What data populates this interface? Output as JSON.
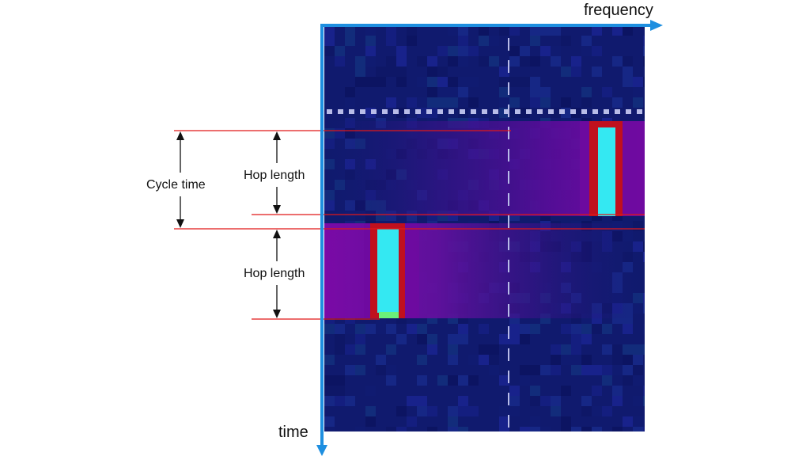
{
  "axes": {
    "x_label": "frequency",
    "y_label": "time"
  },
  "annotations": {
    "cycle_time": "Cycle time",
    "hop_length_1": "Hop length",
    "hop_length_2": "Hop length"
  },
  "colors": {
    "axis": "#1e8fe0",
    "background": "#101a6e",
    "hop_band": "#6e0aa0",
    "hop_core": "#c0101e",
    "hop_signal": "#34e8f2",
    "signal_start": "#6af07a",
    "marker_line": "#e01818",
    "dashed_center": "#b8bce8",
    "dotted_line": "#b8bce8"
  }
}
